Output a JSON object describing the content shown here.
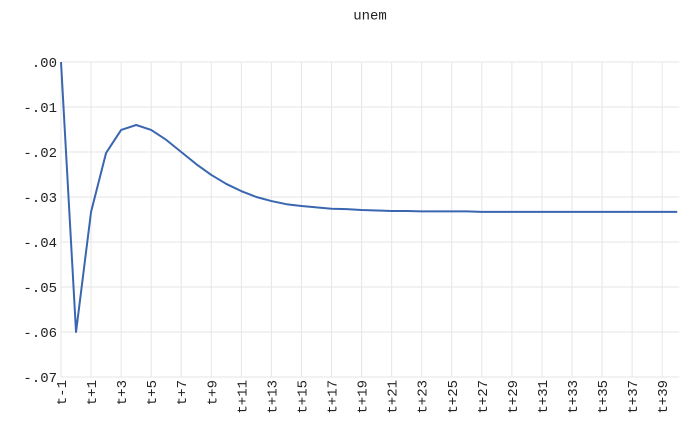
{
  "chart_data": {
    "type": "line",
    "title": "unem",
    "categories": [
      "t-1",
      null,
      "t+1",
      null,
      "t+3",
      null,
      "t+5",
      null,
      "t+7",
      null,
      "t+9",
      null,
      "t+11",
      null,
      "t+13",
      null,
      "t+15",
      null,
      "t+17",
      null,
      "t+19",
      null,
      "t+21",
      null,
      "t+23",
      null,
      "t+25",
      null,
      "t+27",
      null,
      "t+29",
      null,
      "t+31",
      null,
      "t+33",
      null,
      "t+35",
      null,
      "t+37",
      null,
      "t+39",
      null
    ],
    "series": [
      {
        "name": "unem",
        "color": "#3a66b0",
        "values": [
          0,
          -0.06,
          -0.0333,
          -0.0202,
          -0.0151,
          -0.014,
          -0.0151,
          -0.0173,
          -0.02,
          -0.0227,
          -0.0251,
          -0.0271,
          -0.0287,
          -0.03,
          -0.0309,
          -0.0316,
          -0.032,
          -0.0323,
          -0.0326,
          -0.0327,
          -0.0329,
          -0.033,
          -0.0331,
          -0.0331,
          -0.0332,
          -0.0332,
          -0.0332,
          -0.0332,
          -0.0333,
          -0.0333,
          -0.0333,
          -0.0333,
          -0.0333,
          -0.0333,
          -0.0333,
          -0.0333,
          -0.0333,
          -0.0333,
          -0.0333,
          -0.0333,
          -0.0333,
          -0.0333
        ]
      }
    ],
    "ylim": [
      -0.07,
      0
    ],
    "yticks": [
      {
        "value": 0,
        "label": ".00"
      },
      {
        "value": -0.01,
        "label": "-.01"
      },
      {
        "value": -0.02,
        "label": "-.02"
      },
      {
        "value": -0.03,
        "label": "-.03"
      },
      {
        "value": -0.04,
        "label": "-.04"
      },
      {
        "value": -0.05,
        "label": "-.05"
      },
      {
        "value": -0.06,
        "label": "-.06"
      },
      {
        "value": -0.07,
        "label": "-.07"
      }
    ],
    "grid": true
  }
}
